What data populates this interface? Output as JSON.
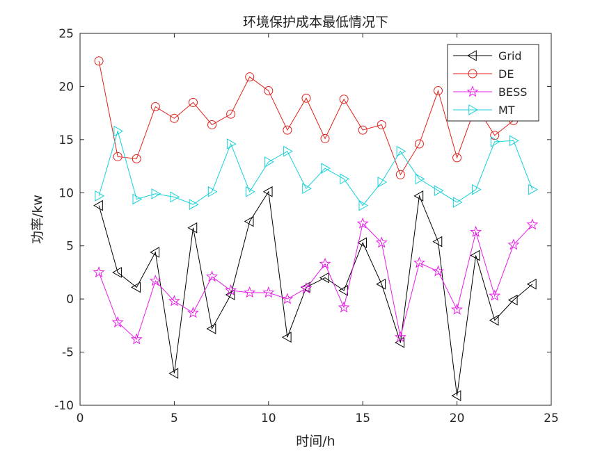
{
  "chart_data": {
    "type": "line",
    "title": "环境保护成本最低情况下",
    "xlabel": "时间/h",
    "ylabel": "功率/kw",
    "xlim": [
      0,
      25
    ],
    "ylim": [
      -10,
      25
    ],
    "xticks": [
      0,
      5,
      10,
      15,
      20,
      25
    ],
    "yticks": [
      -10,
      -5,
      0,
      5,
      10,
      15,
      20,
      25
    ],
    "grid": false,
    "legend_position": "top-right",
    "x": [
      1,
      2,
      3,
      4,
      5,
      6,
      7,
      8,
      9,
      10,
      11,
      12,
      13,
      14,
      15,
      16,
      17,
      18,
      19,
      20,
      21,
      22,
      23,
      24
    ],
    "series": [
      {
        "name": "Grid",
        "color": "#000000",
        "marker": "triangle-left",
        "values": [
          8.8,
          2.5,
          1.1,
          4.4,
          -7.0,
          6.7,
          -2.8,
          0.4,
          7.3,
          10.1,
          -3.6,
          1.1,
          2.0,
          0.8,
          5.3,
          1.4,
          -4.1,
          9.7,
          5.4,
          -9.1,
          4.1,
          -2.0,
          -0.1,
          1.4
        ]
      },
      {
        "name": "DE",
        "color": "#e0201b",
        "marker": "circle",
        "values": [
          22.4,
          13.4,
          13.2,
          18.1,
          17.0,
          18.5,
          16.4,
          17.4,
          20.9,
          19.6,
          15.9,
          18.9,
          15.1,
          18.8,
          15.9,
          16.4,
          11.7,
          14.6,
          19.6,
          13.3,
          18.2,
          15.4,
          16.8,
          18.7
        ]
      },
      {
        "name": "BESS",
        "color": "#e81be8",
        "marker": "pentagram",
        "values": [
          2.5,
          -2.2,
          -3.8,
          1.7,
          -0.2,
          -1.3,
          2.1,
          0.8,
          0.6,
          0.6,
          0.0,
          1.0,
          3.3,
          -0.8,
          7.1,
          5.3,
          -3.6,
          3.4,
          2.6,
          -1.0,
          6.3,
          0.3,
          5.1,
          7.0
        ]
      },
      {
        "name": "MT",
        "color": "#16d1d9",
        "marker": "triangle-right",
        "values": [
          9.7,
          15.8,
          9.4,
          9.9,
          9.6,
          8.9,
          10.1,
          14.6,
          10.1,
          12.9,
          13.9,
          10.4,
          12.3,
          11.3,
          8.8,
          11.0,
          13.9,
          11.3,
          10.2,
          9.1,
          10.3,
          14.8,
          14.9,
          10.3
        ]
      }
    ]
  }
}
